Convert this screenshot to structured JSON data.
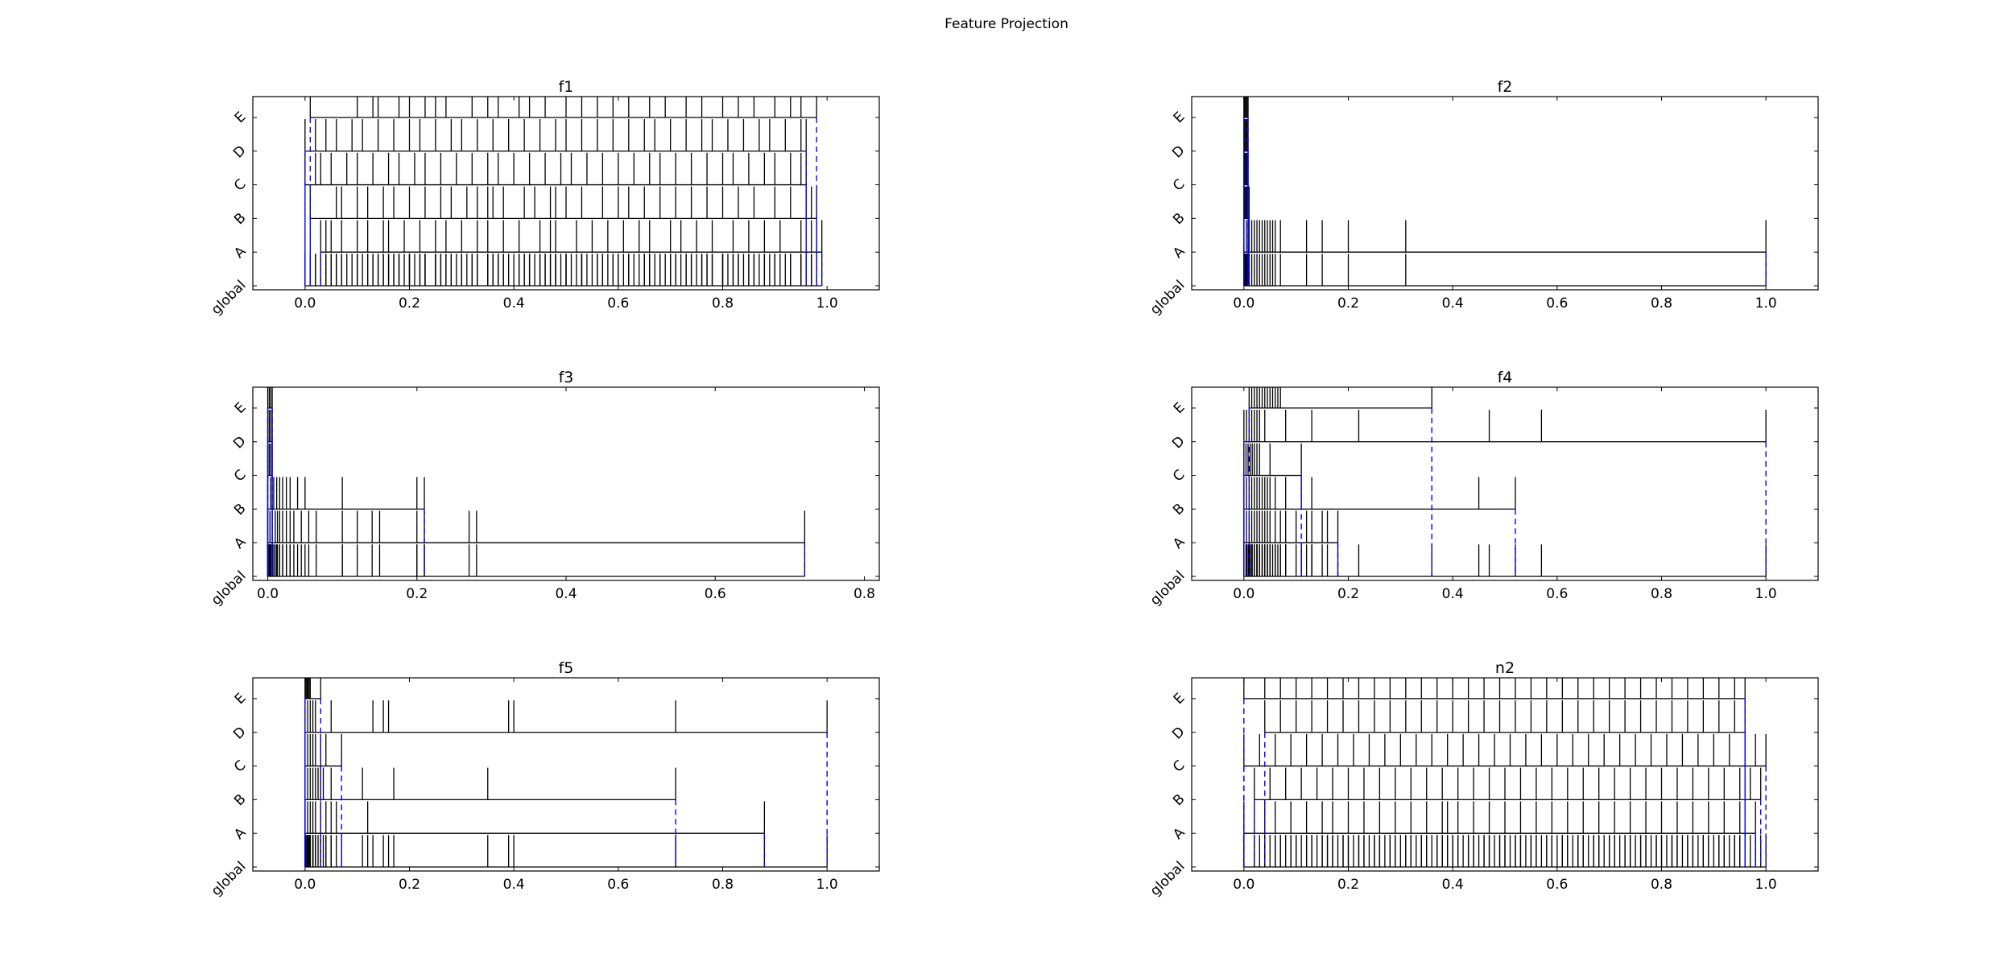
{
  "figure_title": "Feature Projection",
  "chart_data": [
    {
      "type": "rug",
      "title": "f1",
      "rows": [
        "global",
        "A",
        "B",
        "C",
        "D",
        "E"
      ],
      "xlim": [
        -0.1,
        1.1
      ],
      "xticks": [
        "0.0",
        "0.2",
        "0.4",
        "0.6",
        "0.8",
        "1.0"
      ],
      "xtick_values": [
        0,
        0.2,
        0.4,
        0.6,
        0.8,
        1.0
      ],
      "colors": {
        "marks": "#000000",
        "range_guides": "#0000ff"
      },
      "series": [
        {
          "name": "A",
          "min": 0.03,
          "max": 0.99,
          "values": [
            0.03,
            0.04,
            0.05,
            0.07,
            0.1,
            0.12,
            0.15,
            0.16,
            0.19,
            0.22,
            0.25,
            0.27,
            0.3,
            0.33,
            0.35,
            0.38,
            0.41,
            0.45,
            0.47,
            0.48,
            0.52,
            0.55,
            0.58,
            0.61,
            0.64,
            0.66,
            0.7,
            0.72,
            0.75,
            0.78,
            0.82,
            0.85,
            0.88,
            0.91,
            0.95,
            0.97,
            0.98,
            0.99
          ]
        },
        {
          "name": "B",
          "min": 0.01,
          "max": 0.98,
          "values": [
            0.01,
            0.06,
            0.07,
            0.1,
            0.12,
            0.15,
            0.17,
            0.2,
            0.23,
            0.26,
            0.28,
            0.31,
            0.33,
            0.35,
            0.36,
            0.38,
            0.42,
            0.44,
            0.47,
            0.48,
            0.5,
            0.53,
            0.57,
            0.6,
            0.62,
            0.65,
            0.68,
            0.71,
            0.74,
            0.77,
            0.8,
            0.83,
            0.86,
            0.9,
            0.93,
            0.96,
            0.97,
            0.98
          ]
        },
        {
          "name": "C",
          "min": 0.0,
          "max": 0.96,
          "values": [
            0.0,
            0.02,
            0.03,
            0.05,
            0.08,
            0.1,
            0.13,
            0.16,
            0.18,
            0.21,
            0.23,
            0.26,
            0.29,
            0.32,
            0.35,
            0.37,
            0.4,
            0.43,
            0.46,
            0.49,
            0.51,
            0.54,
            0.57,
            0.6,
            0.63,
            0.66,
            0.68,
            0.71,
            0.74,
            0.77,
            0.8,
            0.82,
            0.85,
            0.88,
            0.9,
            0.93,
            0.95,
            0.96
          ]
        },
        {
          "name": "D",
          "min": 0.0,
          "max": 0.96,
          "values": [
            0.0,
            0.02,
            0.04,
            0.06,
            0.09,
            0.11,
            0.14,
            0.17,
            0.2,
            0.22,
            0.25,
            0.28,
            0.3,
            0.33,
            0.36,
            0.39,
            0.42,
            0.45,
            0.48,
            0.5,
            0.53,
            0.56,
            0.59,
            0.62,
            0.65,
            0.67,
            0.7,
            0.73,
            0.76,
            0.78,
            0.81,
            0.84,
            0.87,
            0.89,
            0.92,
            0.95,
            0.96
          ]
        },
        {
          "name": "E",
          "min": 0.01,
          "max": 0.98,
          "values": [
            0.01,
            0.1,
            0.13,
            0.14,
            0.18,
            0.2,
            0.23,
            0.25,
            0.27,
            0.32,
            0.35,
            0.37,
            0.41,
            0.43,
            0.46,
            0.5,
            0.53,
            0.56,
            0.59,
            0.62,
            0.66,
            0.69,
            0.73,
            0.76,
            0.8,
            0.83,
            0.86,
            0.9,
            0.93,
            0.95,
            0.98
          ]
        }
      ]
    },
    {
      "type": "rug",
      "title": "f2",
      "rows": [
        "global",
        "A",
        "B",
        "C",
        "D",
        "E"
      ],
      "xlim": [
        -0.1,
        1.1
      ],
      "xticks": [
        "0.0",
        "0.2",
        "0.4",
        "0.6",
        "0.8",
        "1.0"
      ],
      "xtick_values": [
        0,
        0.2,
        0.4,
        0.6,
        0.8,
        1.0
      ],
      "colors": {
        "marks": "#000000",
        "range_guides": "#0000ff"
      },
      "series": [
        {
          "name": "A",
          "min": 0.0,
          "max": 1.0,
          "values": [
            0.0,
            0.005,
            0.01,
            0.015,
            0.02,
            0.025,
            0.03,
            0.035,
            0.04,
            0.045,
            0.05,
            0.055,
            0.06,
            0.07,
            0.12,
            0.15,
            0.2,
            0.31,
            1.0
          ]
        },
        {
          "name": "B",
          "min": 0.0,
          "max": 0.01,
          "values": [
            0.0,
            0.002,
            0.004,
            0.006,
            0.008,
            0.01
          ]
        },
        {
          "name": "C",
          "min": 0.0,
          "max": 0.008,
          "values": [
            0.0,
            0.002,
            0.004,
            0.006,
            0.008
          ]
        },
        {
          "name": "D",
          "min": 0.0,
          "max": 0.008,
          "values": [
            0.0,
            0.002,
            0.004,
            0.006,
            0.008
          ]
        },
        {
          "name": "E",
          "min": 0.0,
          "max": 0.008,
          "values": [
            0.0,
            0.002,
            0.004,
            0.006,
            0.008
          ]
        }
      ]
    },
    {
      "type": "rug",
      "title": "f3",
      "rows": [
        "global",
        "A",
        "B",
        "C",
        "D",
        "E"
      ],
      "xlim": [
        -0.02,
        0.82
      ],
      "xticks": [
        "0.0",
        "0.2",
        "0.4",
        "0.6",
        "0.8"
      ],
      "xtick_values": [
        0,
        0.2,
        0.4,
        0.6,
        0.8
      ],
      "colors": {
        "marks": "#000000",
        "range_guides": "#0000ff"
      },
      "series": [
        {
          "name": "A",
          "min": 0.0,
          "max": 0.72,
          "values": [
            0.0,
            0.003,
            0.006,
            0.01,
            0.013,
            0.016,
            0.02,
            0.025,
            0.03,
            0.035,
            0.045,
            0.055,
            0.065,
            0.1,
            0.12,
            0.14,
            0.15,
            0.2,
            0.21,
            0.27,
            0.28,
            0.72
          ]
        },
        {
          "name": "B",
          "min": 0.0,
          "max": 0.21,
          "values": [
            0.0,
            0.004,
            0.008,
            0.012,
            0.016,
            0.02,
            0.025,
            0.03,
            0.04,
            0.05,
            0.1,
            0.2,
            0.21
          ]
        },
        {
          "name": "C",
          "min": 0.0,
          "max": 0.006,
          "values": [
            0.0,
            0.002,
            0.004,
            0.006
          ]
        },
        {
          "name": "D",
          "min": 0.0,
          "max": 0.006,
          "values": [
            0.0,
            0.002,
            0.004,
            0.006
          ]
        },
        {
          "name": "E",
          "min": 0.0,
          "max": 0.006,
          "values": [
            0.0,
            0.002,
            0.004,
            0.006
          ]
        }
      ]
    },
    {
      "type": "rug",
      "title": "f4",
      "rows": [
        "global",
        "A",
        "B",
        "C",
        "D",
        "E"
      ],
      "xlim": [
        -0.1,
        1.1
      ],
      "xticks": [
        "0.0",
        "0.2",
        "0.4",
        "0.6",
        "0.8",
        "1.0"
      ],
      "xtick_values": [
        0,
        0.2,
        0.4,
        0.6,
        0.8,
        1.0
      ],
      "colors": {
        "marks": "#000000",
        "range_guides": "#0000ff"
      },
      "series": [
        {
          "name": "A",
          "min": 0.0,
          "max": 0.18,
          "values": [
            0.0,
            0.005,
            0.01,
            0.015,
            0.02,
            0.025,
            0.03,
            0.035,
            0.04,
            0.045,
            0.05,
            0.06,
            0.07,
            0.08,
            0.1,
            0.12,
            0.13,
            0.15,
            0.16,
            0.18
          ]
        },
        {
          "name": "B",
          "min": 0.0,
          "max": 0.52,
          "values": [
            0.0,
            0.005,
            0.01,
            0.015,
            0.02,
            0.025,
            0.03,
            0.035,
            0.04,
            0.045,
            0.05,
            0.06,
            0.08,
            0.11,
            0.13,
            0.45,
            0.52
          ]
        },
        {
          "name": "C",
          "min": 0.0,
          "max": 0.11,
          "values": [
            0.0,
            0.004,
            0.008,
            0.012,
            0.016,
            0.02,
            0.025,
            0.03,
            0.05,
            0.11
          ]
        },
        {
          "name": "D",
          "min": 0.0,
          "max": 1.0,
          "values": [
            0.0,
            0.005,
            0.01,
            0.015,
            0.02,
            0.025,
            0.03,
            0.04,
            0.08,
            0.13,
            0.22,
            0.47,
            0.57,
            1.0
          ]
        },
        {
          "name": "E",
          "min": 0.01,
          "max": 0.36,
          "values": [
            0.01,
            0.015,
            0.02,
            0.025,
            0.03,
            0.035,
            0.04,
            0.045,
            0.05,
            0.055,
            0.06,
            0.065,
            0.07,
            0.36
          ]
        }
      ]
    },
    {
      "type": "rug",
      "title": "f5",
      "rows": [
        "global",
        "A",
        "B",
        "C",
        "D",
        "E"
      ],
      "xlim": [
        -0.1,
        1.1
      ],
      "xticks": [
        "0.0",
        "0.2",
        "0.4",
        "0.6",
        "0.8",
        "1.0"
      ],
      "xtick_values": [
        0,
        0.2,
        0.4,
        0.6,
        0.8,
        1.0
      ],
      "colors": {
        "marks": "#000000",
        "range_guides": "#0000ff"
      },
      "series": [
        {
          "name": "A",
          "min": 0.0,
          "max": 0.88,
          "values": [
            0.0,
            0.005,
            0.01,
            0.015,
            0.02,
            0.03,
            0.04,
            0.05,
            0.06,
            0.12,
            0.88
          ]
        },
        {
          "name": "B",
          "min": 0.0,
          "max": 0.71,
          "values": [
            0.0,
            0.005,
            0.01,
            0.015,
            0.02,
            0.025,
            0.03,
            0.035,
            0.05,
            0.11,
            0.17,
            0.35,
            0.71
          ]
        },
        {
          "name": "C",
          "min": 0.0,
          "max": 0.07,
          "values": [
            0.0,
            0.005,
            0.01,
            0.015,
            0.02,
            0.03,
            0.04,
            0.07
          ]
        },
        {
          "name": "D",
          "min": 0.0,
          "max": 1.0,
          "values": [
            0.0,
            0.005,
            0.01,
            0.015,
            0.02,
            0.05,
            0.13,
            0.15,
            0.16,
            0.39,
            0.4,
            0.71,
            1.0
          ]
        },
        {
          "name": "E",
          "min": 0.0,
          "max": 0.03,
          "values": [
            0.0,
            0.002,
            0.004,
            0.006,
            0.008,
            0.01,
            0.03
          ]
        }
      ]
    },
    {
      "type": "rug",
      "title": "n2",
      "rows": [
        "global",
        "A",
        "B",
        "C",
        "D",
        "E"
      ],
      "xlim": [
        -0.1,
        1.1
      ],
      "xticks": [
        "0.0",
        "0.2",
        "0.4",
        "0.6",
        "0.8",
        "1.0"
      ],
      "xtick_values": [
        0,
        0.2,
        0.4,
        0.6,
        0.8,
        1.0
      ],
      "colors": {
        "marks": "#000000",
        "range_guides": "#0000ff"
      },
      "series": [
        {
          "name": "A",
          "min": 0.0,
          "max": 0.98,
          "values": [
            0.0,
            0.02,
            0.04,
            0.06,
            0.09,
            0.12,
            0.15,
            0.17,
            0.2,
            0.23,
            0.26,
            0.29,
            0.32,
            0.35,
            0.38,
            0.39,
            0.41,
            0.44,
            0.47,
            0.5,
            0.53,
            0.56,
            0.59,
            0.62,
            0.65,
            0.68,
            0.71,
            0.74,
            0.77,
            0.8,
            0.83,
            0.86,
            0.89,
            0.92,
            0.95,
            0.98
          ]
        },
        {
          "name": "B",
          "min": 0.02,
          "max": 0.99,
          "values": [
            0.02,
            0.05,
            0.08,
            0.11,
            0.14,
            0.17,
            0.2,
            0.23,
            0.26,
            0.29,
            0.32,
            0.35,
            0.38,
            0.41,
            0.44,
            0.47,
            0.5,
            0.53,
            0.56,
            0.59,
            0.62,
            0.65,
            0.68,
            0.71,
            0.74,
            0.77,
            0.8,
            0.83,
            0.86,
            0.89,
            0.92,
            0.95,
            0.97,
            0.99
          ]
        },
        {
          "name": "C",
          "min": 0.0,
          "max": 1.0,
          "values": [
            0.0,
            0.03,
            0.06,
            0.09,
            0.12,
            0.15,
            0.18,
            0.21,
            0.24,
            0.27,
            0.3,
            0.33,
            0.36,
            0.39,
            0.42,
            0.45,
            0.48,
            0.51,
            0.54,
            0.57,
            0.6,
            0.63,
            0.66,
            0.69,
            0.72,
            0.75,
            0.78,
            0.81,
            0.84,
            0.87,
            0.9,
            0.93,
            0.96,
            0.98,
            1.0
          ]
        },
        {
          "name": "D",
          "min": 0.04,
          "max": 0.96,
          "values": [
            0.04,
            0.07,
            0.1,
            0.13,
            0.16,
            0.19,
            0.22,
            0.25,
            0.28,
            0.31,
            0.34,
            0.37,
            0.4,
            0.43,
            0.46,
            0.49,
            0.52,
            0.55,
            0.58,
            0.61,
            0.64,
            0.67,
            0.7,
            0.73,
            0.76,
            0.79,
            0.82,
            0.85,
            0.88,
            0.91,
            0.94,
            0.96
          ]
        },
        {
          "name": "E",
          "min": 0.0,
          "max": 0.96,
          "values": [
            0.0,
            0.04,
            0.07,
            0.1,
            0.13,
            0.16,
            0.19,
            0.22,
            0.25,
            0.28,
            0.31,
            0.34,
            0.37,
            0.4,
            0.43,
            0.46,
            0.49,
            0.52,
            0.55,
            0.58,
            0.61,
            0.64,
            0.67,
            0.7,
            0.73,
            0.76,
            0.79,
            0.82,
            0.85,
            0.88,
            0.91,
            0.94,
            0.96
          ]
        }
      ]
    }
  ]
}
